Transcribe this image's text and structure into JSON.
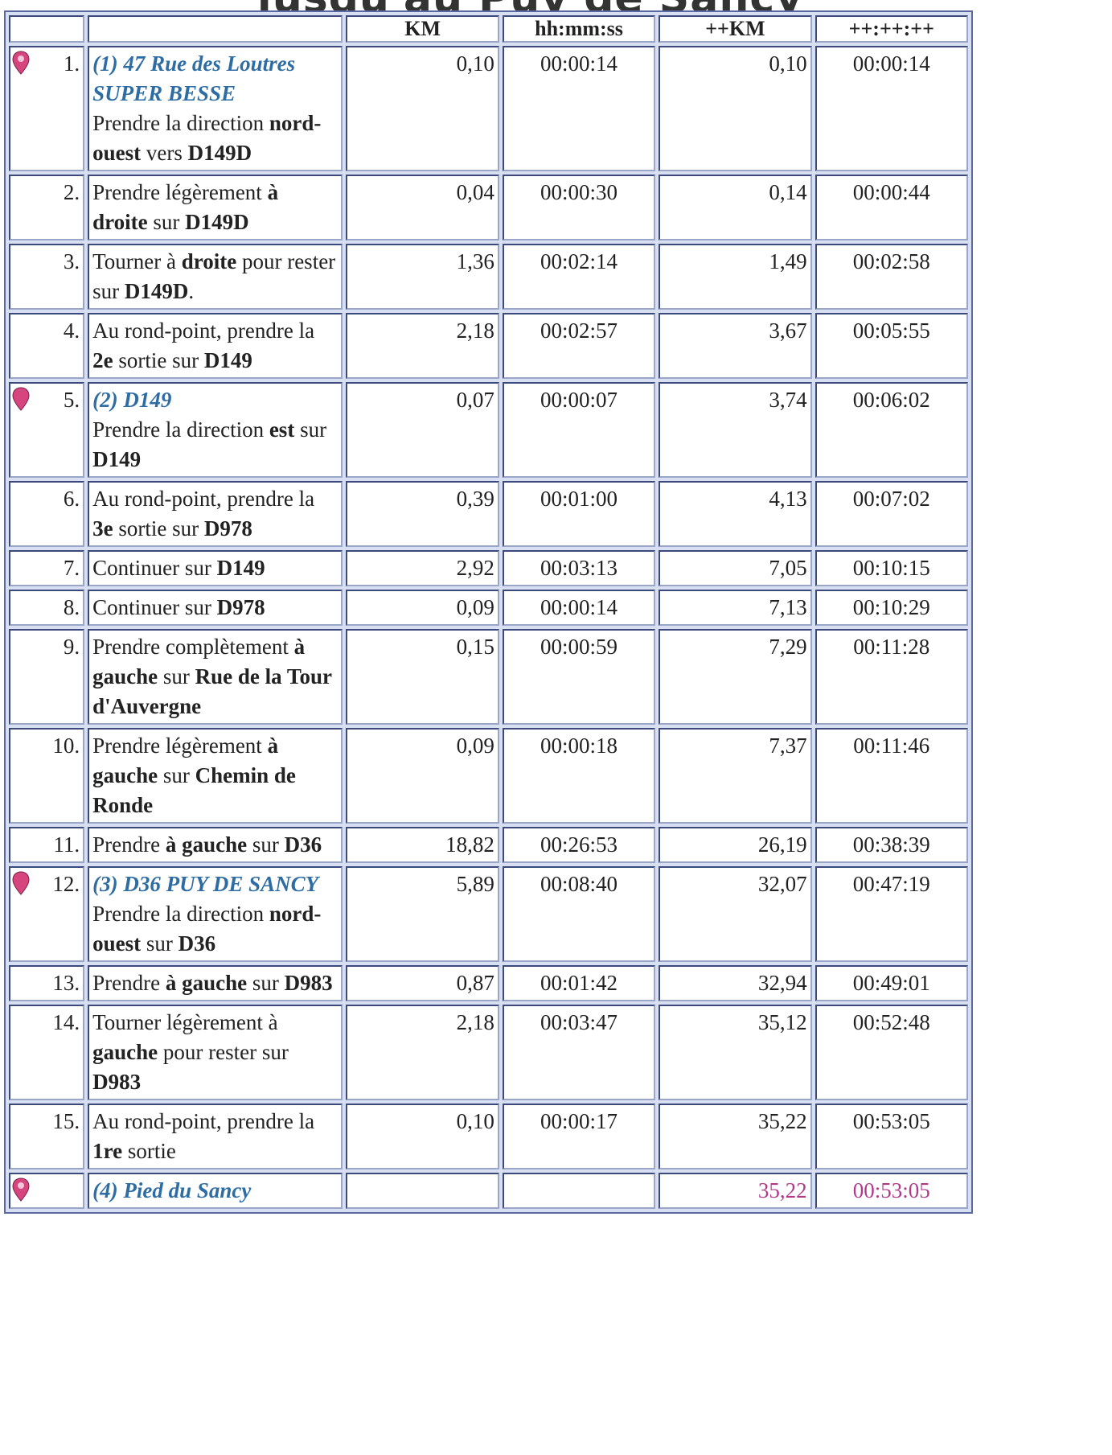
{
  "title": "jusqu'au Puy de Sancy",
  "columns": {
    "col1": "",
    "col2": "",
    "km": "KM",
    "time": "hh:mm:ss",
    "cum_km": "++KM",
    "cum_time": "++:++:++"
  },
  "colors": {
    "waypoint_title": "#2e6da4",
    "pin": "#d6457e",
    "final_values": "#b03a8a"
  },
  "rows": [
    {
      "num": "1.",
      "pin": "start-pin-icon",
      "waypoint": "(1) 47 Rue des Loutres SUPER BESSE",
      "parts": [
        [
          "Prendre la direction ",
          false
        ],
        [
          "nord-ouest",
          true
        ],
        [
          " vers ",
          false
        ],
        [
          "D149D",
          true
        ]
      ],
      "km": "0,10",
      "time": "00:00:14",
      "cum_km": "0,10",
      "cum_time": "00:00:14"
    },
    {
      "num": "2.",
      "pin": null,
      "waypoint": null,
      "parts": [
        [
          "Prendre légèrement ",
          false
        ],
        [
          "à droite",
          true
        ],
        [
          " sur ",
          false
        ],
        [
          "D149D",
          true
        ]
      ],
      "km": "0,04",
      "time": "00:00:30",
      "cum_km": "0,14",
      "cum_time": "00:00:44"
    },
    {
      "num": "3.",
      "pin": null,
      "waypoint": null,
      "parts": [
        [
          "Tourner à ",
          false
        ],
        [
          "droite",
          true
        ],
        [
          " pour rester sur ",
          false
        ],
        [
          "D149D",
          true
        ],
        [
          ".",
          false
        ]
      ],
      "km": "1,36",
      "time": "00:02:14",
      "cum_km": "1,49",
      "cum_time": "00:02:58"
    },
    {
      "num": "4.",
      "pin": null,
      "waypoint": null,
      "parts": [
        [
          "Au rond-point, prendre la ",
          false
        ],
        [
          "2e",
          true
        ],
        [
          " sortie sur ",
          false
        ],
        [
          "D149",
          true
        ]
      ],
      "km": "2,18",
      "time": "00:02:57",
      "cum_km": "3,67",
      "cum_time": "00:05:55"
    },
    {
      "num": "5.",
      "pin": "waypoint-pin-icon",
      "waypoint": "(2) D149",
      "parts": [
        [
          "Prendre la direction ",
          false
        ],
        [
          "est",
          true
        ],
        [
          " sur ",
          false
        ],
        [
          "D149",
          true
        ]
      ],
      "km": "0,07",
      "time": "00:00:07",
      "cum_km": "3,74",
      "cum_time": "00:06:02"
    },
    {
      "num": "6.",
      "pin": null,
      "waypoint": null,
      "parts": [
        [
          "Au rond-point, prendre la ",
          false
        ],
        [
          "3e",
          true
        ],
        [
          " sortie sur ",
          false
        ],
        [
          "D978",
          true
        ]
      ],
      "km": "0,39",
      "time": "00:01:00",
      "cum_km": "4,13",
      "cum_time": "00:07:02"
    },
    {
      "num": "7.",
      "pin": null,
      "waypoint": null,
      "parts": [
        [
          "Continuer sur ",
          false
        ],
        [
          "D149",
          true
        ]
      ],
      "km": "2,92",
      "time": "00:03:13",
      "cum_km": "7,05",
      "cum_time": "00:10:15"
    },
    {
      "num": "8.",
      "pin": null,
      "waypoint": null,
      "parts": [
        [
          "Continuer sur ",
          false
        ],
        [
          "D978",
          true
        ]
      ],
      "km": "0,09",
      "time": "00:00:14",
      "cum_km": "7,13",
      "cum_time": "00:10:29"
    },
    {
      "num": "9.",
      "pin": null,
      "waypoint": null,
      "parts": [
        [
          "Prendre complètement ",
          false
        ],
        [
          "à gauche",
          true
        ],
        [
          " sur ",
          false
        ],
        [
          "Rue de la Tour d'Auvergne",
          true
        ]
      ],
      "km": "0,15",
      "time": "00:00:59",
      "cum_km": "7,29",
      "cum_time": "00:11:28"
    },
    {
      "num": "10.",
      "pin": null,
      "waypoint": null,
      "parts": [
        [
          "Prendre légèrement ",
          false
        ],
        [
          "à gauche",
          true
        ],
        [
          " sur ",
          false
        ],
        [
          "Chemin de Ronde",
          true
        ]
      ],
      "km": "0,09",
      "time": "00:00:18",
      "cum_km": "7,37",
      "cum_time": "00:11:46"
    },
    {
      "num": "11.",
      "pin": null,
      "waypoint": null,
      "parts": [
        [
          "Prendre ",
          false
        ],
        [
          "à gauche",
          true
        ],
        [
          " sur ",
          false
        ],
        [
          "D36",
          true
        ]
      ],
      "km": "18,82",
      "time": "00:26:53",
      "cum_km": "26,19",
      "cum_time": "00:38:39"
    },
    {
      "num": "12.",
      "pin": "waypoint-pin-icon",
      "waypoint": "(3) D36 PUY DE SANCY",
      "parts": [
        [
          "Prendre la direction ",
          false
        ],
        [
          "nord-ouest",
          true
        ],
        [
          " sur ",
          false
        ],
        [
          "D36",
          true
        ]
      ],
      "km": "5,89",
      "time": "00:08:40",
      "cum_km": "32,07",
      "cum_time": "00:47:19"
    },
    {
      "num": "13.",
      "pin": null,
      "waypoint": null,
      "parts": [
        [
          "Prendre ",
          false
        ],
        [
          "à gauche",
          true
        ],
        [
          " sur ",
          false
        ],
        [
          "D983",
          true
        ]
      ],
      "km": "0,87",
      "time": "00:01:42",
      "cum_km": "32,94",
      "cum_time": "00:49:01"
    },
    {
      "num": "14.",
      "pin": null,
      "waypoint": null,
      "parts": [
        [
          "Tourner légèrement à ",
          false
        ],
        [
          "gauche",
          true
        ],
        [
          " pour rester sur ",
          false
        ],
        [
          "D983",
          true
        ]
      ],
      "km": "2,18",
      "time": "00:03:47",
      "cum_km": "35,12",
      "cum_time": "00:52:48"
    },
    {
      "num": "15.",
      "pin": null,
      "waypoint": null,
      "parts": [
        [
          "Au rond-point, prendre la ",
          false
        ],
        [
          "1re",
          true
        ],
        [
          " sortie",
          false
        ]
      ],
      "km": "0,10",
      "time": "00:00:17",
      "cum_km": "35,22",
      "cum_time": "00:53:05"
    },
    {
      "num": "",
      "pin": "end-pin-icon",
      "waypoint": "(4) Pied du Sancy",
      "parts": [],
      "km": "",
      "time": "",
      "cum_km": "35,22",
      "cum_time": "00:53:05",
      "final": true
    }
  ]
}
